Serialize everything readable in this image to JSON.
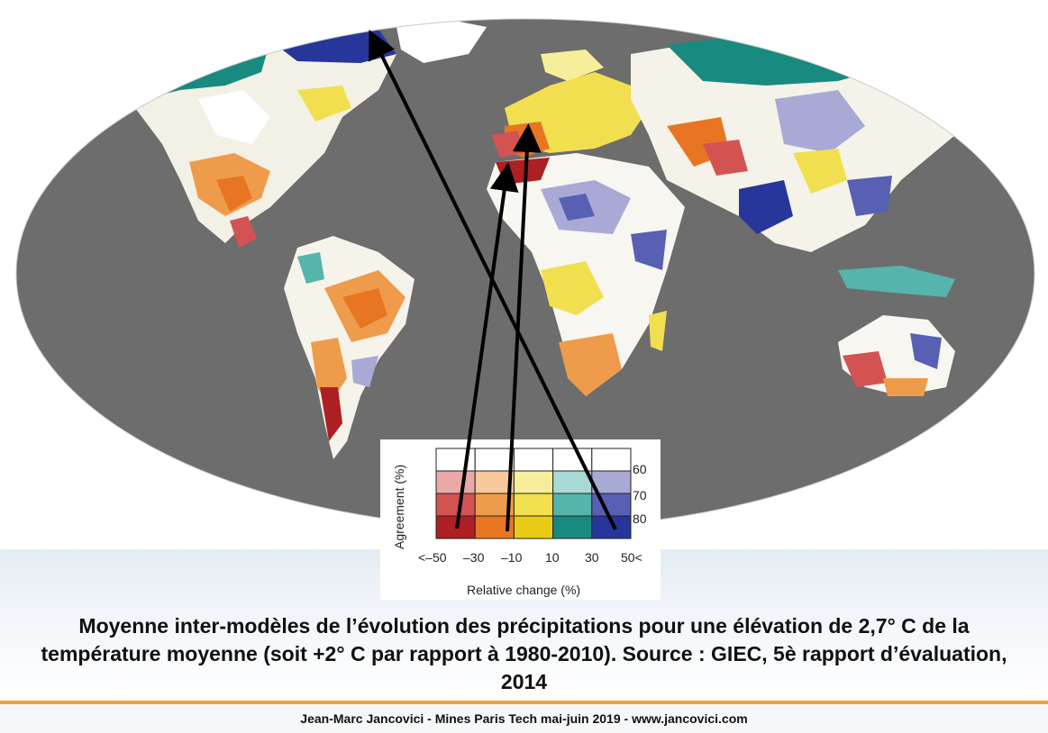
{
  "map": {
    "colors": {
      "ocean": "#6d6d6d",
      "outside": "#ffffff",
      "ice": "#ffffff",
      "coastline": "#111111",
      "arrow": "#000000"
    },
    "icon": "world-map-precipitation-change"
  },
  "legend": {
    "y_label": "Agreement (%)",
    "x_label": "Relative change (%)",
    "agreement_levels": [
      "60",
      "70",
      "80"
    ],
    "x_ticks": [
      "<–50",
      "–30",
      "–10",
      "10",
      "30",
      "50<"
    ],
    "colors": {
      "row_60": [
        "#ffffff",
        "#ffffff",
        "#ffffff",
        "#ffffff",
        "#ffffff"
      ],
      "row_70": [
        "#e8a9a8",
        "#f6c89c",
        "#f6ee9a",
        "#a9d9d4",
        "#a9a9d6"
      ],
      "row_80": [
        "#d35352",
        "#ee9c4b",
        "#f1df4f",
        "#55b4ab",
        "#5860b3"
      ],
      "row_top": [
        "#ae1f23",
        "#e87522",
        "#e8cc15",
        "#198a80",
        "#27369a"
      ]
    }
  },
  "caption": "Moyenne inter-modèles de l’évolution des précipitations pour une élévation de 2,7° C de la température moyenne (soit +2° C par rapport à 1980-2010). Source : GIEC, 5è rapport d’évaluation, 2014",
  "footer": "Jean-Marc Jancovici - Mines Paris Tech mai-juin 2019 - www.jancovici.com"
}
